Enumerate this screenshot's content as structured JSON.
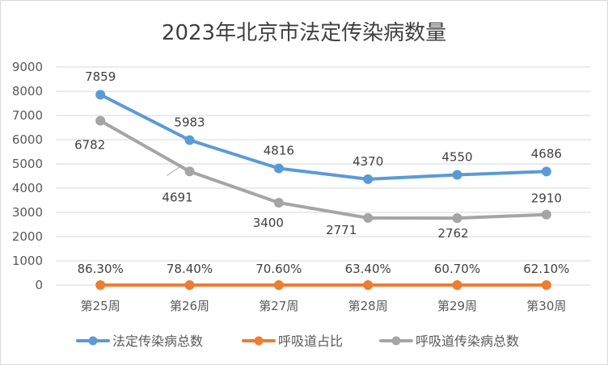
{
  "chart_data": {
    "type": "line",
    "title": "2023年北京市法定传染病数量",
    "categories": [
      "第25周",
      "第26周",
      "第27周",
      "第28周",
      "第29周",
      "第30周"
    ],
    "ylim": [
      0,
      9000
    ],
    "yticks": [
      0,
      1000,
      2000,
      3000,
      4000,
      5000,
      6000,
      7000,
      8000,
      9000
    ],
    "grid": true,
    "legend_position": "bottom",
    "series": [
      {
        "name": "法定传染病总数",
        "color": "#5b9bd5",
        "values": [
          7859,
          5983,
          4816,
          4370,
          4550,
          4686
        ],
        "labels": [
          "7859",
          "5983",
          "4816",
          "4370",
          "4550",
          "4686"
        ]
      },
      {
        "name": "呼吸道占比",
        "color": "#ed7d31",
        "values": [
          0.863,
          0.784,
          0.706,
          0.634,
          0.607,
          0.621
        ],
        "labels": [
          "86.30%",
          "78.40%",
          "70.60%",
          "63.40%",
          "60.70%",
          "62.10%"
        ]
      },
      {
        "name": "呼吸道传染病总数",
        "color": "#a5a5a5",
        "values": [
          6782,
          4691,
          3400,
          2771,
          2762,
          2910
        ],
        "labels": [
          "6782",
          "4691",
          "3400",
          "2771",
          "2762",
          "2910"
        ]
      }
    ]
  }
}
